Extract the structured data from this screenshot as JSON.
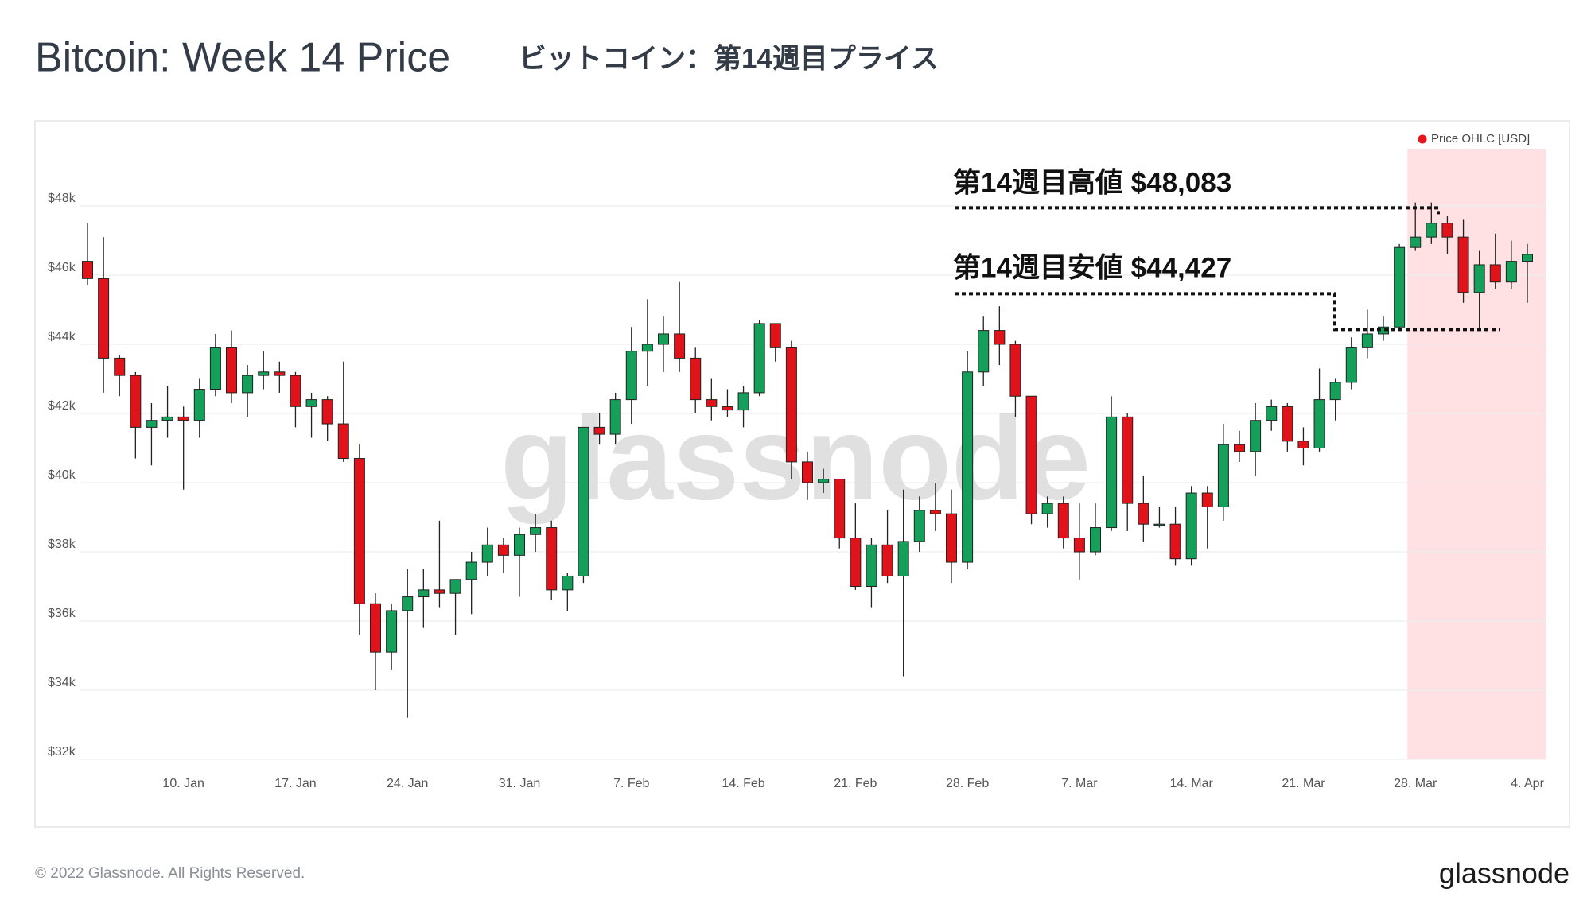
{
  "chart_data": {
    "type": "candlestick",
    "title": "Bitcoin: Week 14 Price",
    "subtitle": "ビットコイン：第14週目プライス",
    "watermark": "glassnode",
    "categories": [
      null,
      null,
      null,
      null,
      null,
      null,
      "10. Jan",
      null,
      null,
      null,
      null,
      null,
      null,
      "17. Jan",
      null,
      null,
      null,
      null,
      null,
      null,
      "24. Jan",
      null,
      null,
      null,
      null,
      null,
      null,
      "31. Jan",
      null,
      null,
      null,
      null,
      null,
      null,
      "7. Feb",
      null,
      null,
      null,
      null,
      null,
      null,
      "14. Feb",
      null,
      null,
      null,
      null,
      null,
      null,
      "21. Feb",
      null,
      null,
      null,
      null,
      null,
      null,
      "28. Feb",
      null,
      null,
      null,
      null,
      null,
      null,
      "7. Mar",
      null,
      null,
      null,
      null,
      null,
      null,
      "14. Mar",
      null,
      null,
      null,
      null,
      null,
      null,
      "21. Mar",
      null,
      null,
      null,
      null,
      null,
      null,
      "28. Mar",
      null,
      null,
      null,
      null,
      null,
      null,
      "4. Apr"
    ],
    "series": [
      {
        "name": "Price OHLC [USD]",
        "color": "#e8131b",
        "up_color": "#14a05a",
        "down_color": "#e0131b",
        "open": [
          46400,
          45900,
          43600,
          43100,
          41600,
          41800,
          41900,
          41800,
          42700,
          43900,
          42600,
          43100,
          43200,
          43100,
          42200,
          42400,
          41700,
          40700,
          36500,
          35100,
          36300,
          36700,
          36900,
          36800,
          37200,
          37700,
          38200,
          37900,
          38500,
          38700,
          36900,
          37300,
          41600,
          41400,
          42400,
          43800,
          44000,
          44300,
          43600,
          42400,
          42200,
          42100,
          42600,
          44600,
          43900,
          40600,
          40000,
          40100,
          38400,
          37000,
          38200,
          37300,
          38300,
          39200,
          39100,
          37700,
          43200,
          44400,
          44000,
          42500,
          39100,
          39400,
          38400,
          38000,
          38700,
          41900,
          39400,
          38800,
          38800,
          37800,
          39700,
          39300,
          41100,
          40900,
          41800,
          42200,
          41200,
          41000,
          42400,
          42900,
          43900,
          44300,
          44500,
          46800,
          47100,
          47500,
          47100,
          45500,
          46300,
          45800,
          46400
        ],
        "high": [
          47500,
          47100,
          43700,
          43200,
          42300,
          42800,
          42200,
          43000,
          44300,
          44400,
          43400,
          43800,
          43500,
          43200,
          42600,
          42500,
          43500,
          41100,
          36800,
          36500,
          37500,
          37500,
          38900,
          37200,
          38000,
          38700,
          38400,
          38700,
          39100,
          38900,
          37400,
          41600,
          42000,
          42600,
          44500,
          45300,
          44800,
          45800,
          43900,
          43000,
          42700,
          42800,
          44700,
          44600,
          44100,
          40900,
          40400,
          40100,
          39400,
          38400,
          39200,
          39800,
          39600,
          40000,
          39800,
          43800,
          44800,
          45100,
          44100,
          42500,
          39600,
          39600,
          39400,
          39400,
          42500,
          42000,
          40200,
          39300,
          39300,
          39900,
          39900,
          41700,
          41500,
          42300,
          42400,
          42300,
          41600,
          43300,
          43000,
          44200,
          45000,
          44800,
          46900,
          48100,
          48100,
          47700,
          47600,
          46700,
          47200,
          47000,
          46900
        ],
        "low": [
          45700,
          42600,
          42500,
          40700,
          40500,
          41300,
          39800,
          41300,
          42500,
          42300,
          41900,
          42700,
          42600,
          41600,
          41300,
          41200,
          40600,
          35600,
          34000,
          34600,
          33200,
          35800,
          36400,
          35600,
          36200,
          37300,
          37400,
          36700,
          38000,
          36600,
          36300,
          37100,
          41100,
          41100,
          41700,
          42800,
          43200,
          43200,
          42000,
          41800,
          41900,
          41600,
          42500,
          43500,
          40100,
          39500,
          39700,
          38100,
          36900,
          36400,
          37100,
          34400,
          38000,
          38600,
          37100,
          37500,
          42800,
          43400,
          41900,
          38800,
          38700,
          38100,
          37200,
          37900,
          38600,
          38600,
          38300,
          38700,
          37600,
          37600,
          38100,
          38900,
          40600,
          40200,
          41500,
          40900,
          40500,
          40900,
          41800,
          42700,
          43600,
          44100,
          44400,
          46700,
          46900,
          46600,
          45200,
          44400,
          45600,
          45600,
          45200
        ],
        "close": [
          45900,
          43600,
          43100,
          41600,
          41800,
          41900,
          41800,
          42700,
          43900,
          42600,
          43100,
          43200,
          43100,
          42200,
          42400,
          41700,
          40700,
          36500,
          35100,
          36300,
          36700,
          36900,
          36800,
          37200,
          37700,
          38200,
          37900,
          38500,
          38700,
          36900,
          37300,
          41600,
          41400,
          42400,
          43800,
          44000,
          44300,
          43600,
          42400,
          42200,
          42100,
          42600,
          44600,
          43900,
          40600,
          40000,
          40100,
          38400,
          37000,
          38200,
          37300,
          38300,
          39200,
          39100,
          37700,
          43200,
          44400,
          44000,
          42500,
          39100,
          39400,
          38400,
          38000,
          38700,
          41900,
          39400,
          38800,
          38800,
          37800,
          39700,
          39300,
          41100,
          40900,
          41800,
          42200,
          41200,
          41000,
          42400,
          42900,
          43900,
          44300,
          44500,
          46800,
          47100,
          47500,
          47100,
          45500,
          46300,
          45800,
          46400,
          46600
        ]
      }
    ],
    "ylim": [
      32000,
      48000
    ],
    "yticks": [
      {
        "value": 32000,
        "label": "$32k"
      },
      {
        "value": 34000,
        "label": "$34k"
      },
      {
        "value": 36000,
        "label": "$36k"
      },
      {
        "value": 38000,
        "label": "$38k"
      },
      {
        "value": 40000,
        "label": "$40k"
      },
      {
        "value": 42000,
        "label": "$42k"
      },
      {
        "value": 44000,
        "label": "$44k"
      },
      {
        "value": 46000,
        "label": "$46k"
      },
      {
        "value": 48000,
        "label": "$48k"
      }
    ],
    "grid": true,
    "legend": "top-right",
    "highlight": {
      "start_category": 83,
      "color": "#ffe1e3"
    },
    "annotations": [
      {
        "label": "第14週目高値  $48,083",
        "value": 48083
      },
      {
        "label": "第14週目安値 $44,427",
        "value": 44427
      }
    ]
  },
  "footer": {
    "copyright": "© 2022 Glassnode. All Rights Reserved.",
    "logo": "glassnode"
  }
}
